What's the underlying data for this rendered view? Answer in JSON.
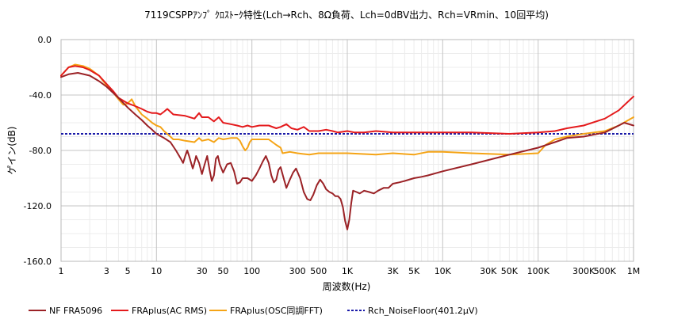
{
  "chart_data": {
    "type": "line",
    "title": "7119CSPPｱﾝﾌﾟ ｸﾛｽﾄｰｸ特性(Lch→Rch、8Ω負荷、Lch=0dBV出力、Rch=VRmin、10回平均)",
    "xlabel": "周波数(Hz)",
    "ylabel": "ゲイン(dB)",
    "xscale": "log",
    "xlim": [
      1,
      1000000
    ],
    "ylim": [
      -160,
      0
    ],
    "grid": true,
    "legend_position": "bottom",
    "y_ticks": [
      {
        "value": 0,
        "label": "0.0"
      },
      {
        "value": -40,
        "label": "-40.0"
      },
      {
        "value": -80,
        "label": "-80.0"
      },
      {
        "value": -120,
        "label": "-120.0"
      },
      {
        "value": -160,
        "label": "-160.0"
      }
    ],
    "x_ticks": [
      {
        "value": 1,
        "label": "1"
      },
      {
        "value": 3,
        "label": "3"
      },
      {
        "value": 5,
        "label": "5"
      },
      {
        "value": 10,
        "label": "10"
      },
      {
        "value": 30,
        "label": "30"
      },
      {
        "value": 50,
        "label": "50"
      },
      {
        "value": 100,
        "label": "100"
      },
      {
        "value": 300,
        "label": "300"
      },
      {
        "value": 500,
        "label": "500"
      },
      {
        "value": 1000,
        "label": "1K"
      },
      {
        "value": 3000,
        "label": "3K"
      },
      {
        "value": 5000,
        "label": "5K"
      },
      {
        "value": 10000,
        "label": "10K"
      },
      {
        "value": 30000,
        "label": "30K"
      },
      {
        "value": 50000,
        "label": "50K"
      },
      {
        "value": 100000,
        "label": "100K"
      },
      {
        "value": 300000,
        "label": "300K"
      },
      {
        "value": 500000,
        "label": "500K"
      },
      {
        "value": 1000000,
        "label": "1M"
      }
    ],
    "series": [
      {
        "name": "NF FRA5096",
        "color": "#9b2226",
        "dash": "solid",
        "points": [
          [
            1,
            -27
          ],
          [
            1.2,
            -25
          ],
          [
            1.5,
            -24
          ],
          [
            2,
            -26
          ],
          [
            2.5,
            -30
          ],
          [
            3,
            -34
          ],
          [
            4,
            -42
          ],
          [
            5,
            -49
          ],
          [
            6,
            -54
          ],
          [
            7,
            -58
          ],
          [
            8,
            -62
          ],
          [
            9,
            -65
          ],
          [
            10,
            -68
          ],
          [
            12,
            -71
          ],
          [
            14,
            -74
          ],
          [
            16,
            -80
          ],
          [
            18,
            -86
          ],
          [
            19,
            -89
          ],
          [
            20,
            -84
          ],
          [
            21,
            -80
          ],
          [
            22,
            -84
          ],
          [
            24,
            -93
          ],
          [
            25,
            -89
          ],
          [
            26,
            -84
          ],
          [
            28,
            -89
          ],
          [
            30,
            -97
          ],
          [
            32,
            -90
          ],
          [
            34,
            -84
          ],
          [
            36,
            -94
          ],
          [
            38,
            -102
          ],
          [
            40,
            -98
          ],
          [
            42,
            -86
          ],
          [
            44,
            -84
          ],
          [
            46,
            -90
          ],
          [
            50,
            -96
          ],
          [
            55,
            -90
          ],
          [
            60,
            -89
          ],
          [
            65,
            -95
          ],
          [
            70,
            -104
          ],
          [
            75,
            -103
          ],
          [
            80,
            -100
          ],
          [
            90,
            -100
          ],
          [
            100,
            -102
          ],
          [
            110,
            -98
          ],
          [
            120,
            -93
          ],
          [
            130,
            -88
          ],
          [
            140,
            -84
          ],
          [
            150,
            -89
          ],
          [
            160,
            -98
          ],
          [
            170,
            -103
          ],
          [
            180,
            -101
          ],
          [
            190,
            -94
          ],
          [
            200,
            -92
          ],
          [
            215,
            -100
          ],
          [
            230,
            -107
          ],
          [
            250,
            -101
          ],
          [
            270,
            -96
          ],
          [
            290,
            -93
          ],
          [
            320,
            -100
          ],
          [
            350,
            -110
          ],
          [
            380,
            -115
          ],
          [
            410,
            -116
          ],
          [
            440,
            -112
          ],
          [
            480,
            -105
          ],
          [
            520,
            -101
          ],
          [
            560,
            -104
          ],
          [
            600,
            -108
          ],
          [
            650,
            -110
          ],
          [
            700,
            -111
          ],
          [
            750,
            -113
          ],
          [
            800,
            -113
          ],
          [
            850,
            -115
          ],
          [
            900,
            -121
          ],
          [
            950,
            -131
          ],
          [
            1000,
            -137
          ],
          [
            1050,
            -130
          ],
          [
            1100,
            -118
          ],
          [
            1150,
            -109
          ],
          [
            1250,
            -110
          ],
          [
            1350,
            -111
          ],
          [
            1500,
            -109
          ],
          [
            1700,
            -110
          ],
          [
            1900,
            -111
          ],
          [
            2100,
            -109
          ],
          [
            2400,
            -107
          ],
          [
            2700,
            -107
          ],
          [
            3000,
            -104
          ],
          [
            3500,
            -103
          ],
          [
            4000,
            -102
          ],
          [
            5000,
            -100
          ],
          [
            6000,
            -99
          ],
          [
            7000,
            -98
          ],
          [
            10000,
            -95
          ],
          [
            20000,
            -90
          ],
          [
            50000,
            -83
          ],
          [
            100000,
            -78
          ],
          [
            150000,
            -74
          ],
          [
            200000,
            -71
          ],
          [
            300000,
            -70
          ],
          [
            500000,
            -67
          ],
          [
            800000,
            -60
          ],
          [
            1000000,
            -62
          ]
        ]
      },
      {
        "name": "FRAplus(AC RMS)",
        "color": "#e41a1c",
        "dash": "solid",
        "points": [
          [
            1,
            -26
          ],
          [
            1.2,
            -20
          ],
          [
            1.4,
            -19
          ],
          [
            1.7,
            -20
          ],
          [
            2,
            -22
          ],
          [
            2.5,
            -26
          ],
          [
            3,
            -32
          ],
          [
            3.5,
            -37
          ],
          [
            4,
            -42
          ],
          [
            5,
            -46
          ],
          [
            5.5,
            -47
          ],
          [
            6,
            -48
          ],
          [
            7,
            -50
          ],
          [
            8,
            -52
          ],
          [
            9,
            -53
          ],
          [
            10,
            -53
          ],
          [
            11,
            -54
          ],
          [
            12,
            -52
          ],
          [
            13,
            -50
          ],
          [
            15,
            -54
          ],
          [
            20,
            -55
          ],
          [
            25,
            -57
          ],
          [
            28,
            -53
          ],
          [
            30,
            -56
          ],
          [
            35,
            -56
          ],
          [
            40,
            -59
          ],
          [
            45,
            -56
          ],
          [
            50,
            -60
          ],
          [
            60,
            -61
          ],
          [
            70,
            -62
          ],
          [
            80,
            -63
          ],
          [
            90,
            -62
          ],
          [
            100,
            -63
          ],
          [
            120,
            -62
          ],
          [
            150,
            -62
          ],
          [
            180,
            -64
          ],
          [
            200,
            -63
          ],
          [
            230,
            -61
          ],
          [
            260,
            -64
          ],
          [
            300,
            -65
          ],
          [
            350,
            -63
          ],
          [
            400,
            -66
          ],
          [
            500,
            -66
          ],
          [
            600,
            -65
          ],
          [
            700,
            -66
          ],
          [
            800,
            -67
          ],
          [
            1000,
            -66
          ],
          [
            1200,
            -67
          ],
          [
            1500,
            -67
          ],
          [
            2000,
            -66
          ],
          [
            3000,
            -67
          ],
          [
            5000,
            -67
          ],
          [
            10000,
            -67
          ],
          [
            20000,
            -67
          ],
          [
            50000,
            -68
          ],
          [
            100000,
            -67
          ],
          [
            150000,
            -66
          ],
          [
            200000,
            -64
          ],
          [
            300000,
            -62
          ],
          [
            500000,
            -57
          ],
          [
            700000,
            -51
          ],
          [
            1000000,
            -41
          ]
        ]
      },
      {
        "name": "FRAplus(OSC同調FFT)",
        "color": "#f5a416",
        "dash": "solid",
        "points": [
          [
            1,
            -26
          ],
          [
            1.2,
            -20
          ],
          [
            1.4,
            -18
          ],
          [
            1.7,
            -19
          ],
          [
            2,
            -21
          ],
          [
            2.5,
            -26
          ],
          [
            3,
            -33
          ],
          [
            3.5,
            -38
          ],
          [
            4,
            -43
          ],
          [
            4.5,
            -47
          ],
          [
            5,
            -46
          ],
          [
            5.5,
            -43
          ],
          [
            6,
            -48
          ],
          [
            7,
            -54
          ],
          [
            8,
            -57
          ],
          [
            9,
            -60
          ],
          [
            10,
            -62
          ],
          [
            11,
            -63
          ],
          [
            12,
            -66
          ],
          [
            14,
            -70
          ],
          [
            15,
            -72
          ],
          [
            17,
            -72
          ],
          [
            20,
            -73
          ],
          [
            25,
            -74
          ],
          [
            28,
            -71
          ],
          [
            30,
            -73
          ],
          [
            35,
            -72
          ],
          [
            40,
            -74
          ],
          [
            45,
            -71
          ],
          [
            50,
            -72
          ],
          [
            60,
            -71
          ],
          [
            70,
            -71
          ],
          [
            75,
            -73
          ],
          [
            80,
            -77
          ],
          [
            85,
            -80
          ],
          [
            90,
            -78
          ],
          [
            95,
            -74
          ],
          [
            100,
            -72
          ],
          [
            150,
            -72
          ],
          [
            180,
            -76
          ],
          [
            200,
            -78
          ],
          [
            210,
            -82
          ],
          [
            250,
            -81
          ],
          [
            300,
            -82
          ],
          [
            400,
            -83
          ],
          [
            500,
            -82
          ],
          [
            1000,
            -82
          ],
          [
            2000,
            -83
          ],
          [
            3000,
            -82
          ],
          [
            5000,
            -83
          ],
          [
            7000,
            -81
          ],
          [
            10000,
            -81
          ],
          [
            20000,
            -82
          ],
          [
            50000,
            -83
          ],
          [
            100000,
            -82
          ],
          [
            120000,
            -76
          ],
          [
            150000,
            -72
          ],
          [
            200000,
            -70
          ],
          [
            300000,
            -68
          ],
          [
            500000,
            -66
          ],
          [
            700000,
            -62
          ],
          [
            1000000,
            -56
          ]
        ]
      },
      {
        "name": "Rch_NoiseFloor(401.2μV)",
        "color": "#1a1aa8",
        "dash": "dotted",
        "points": [
          [
            1,
            -68
          ],
          [
            1000000,
            -68
          ]
        ]
      }
    ]
  }
}
